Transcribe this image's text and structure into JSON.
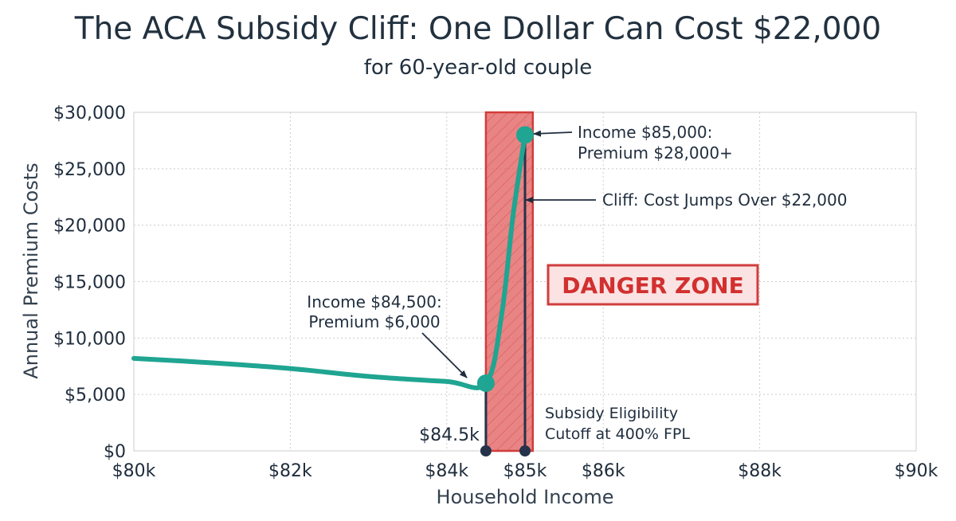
{
  "chart_data": {
    "type": "line",
    "title": "The ACA Subsidy Cliff: One Dollar Can Cost $22,000",
    "subtitle": "for 60-year-old couple",
    "xlabel": "Household Income",
    "ylabel": "Annual Premium Costs",
    "xlim": [
      80000,
      90000
    ],
    "ylim": [
      0,
      30000
    ],
    "x_ticks": [
      {
        "value": 80000,
        "label": "$80k"
      },
      {
        "value": 82000,
        "label": "$82k"
      },
      {
        "value": 84000,
        "label": "$84k"
      },
      {
        "value": 85000,
        "label": "$85k"
      },
      {
        "value": 86000,
        "label": "$86k"
      },
      {
        "value": 88000,
        "label": "$88k"
      },
      {
        "value": 90000,
        "label": "$90k"
      }
    ],
    "y_ticks": [
      {
        "value": 0,
        "label": "$0"
      },
      {
        "value": 5000,
        "label": "$5,000"
      },
      {
        "value": 10000,
        "label": "$10,000"
      },
      {
        "value": 15000,
        "label": "$15,000"
      },
      {
        "value": 20000,
        "label": "$20,000"
      },
      {
        "value": 25000,
        "label": "$25,000"
      },
      {
        "value": 30000,
        "label": "$30,000"
      }
    ],
    "grid": true,
    "series": [
      {
        "color": "#1fa591",
        "points": [
          {
            "x": 80000,
            "y": 8200
          },
          {
            "x": 81000,
            "y": 7800
          },
          {
            "x": 82000,
            "y": 7300
          },
          {
            "x": 83000,
            "y": 6600
          },
          {
            "x": 84000,
            "y": 6150
          },
          {
            "x": 84500,
            "y": 6000
          },
          {
            "x": 84700,
            "y": 12000
          },
          {
            "x": 84850,
            "y": 21000
          },
          {
            "x": 85000,
            "y": 28000
          }
        ]
      }
    ],
    "highlight_points": [
      {
        "x": 84500,
        "y": 6000
      },
      {
        "x": 85000,
        "y": 28000
      }
    ],
    "danger_zone": {
      "x_start": 84500,
      "x_end": 85100,
      "label": "DANGER ZONE",
      "color": "#e05555"
    },
    "markers": [
      {
        "x": 84500,
        "label": "$84.5k"
      },
      {
        "x": 85000,
        "label": ""
      }
    ],
    "annotations": [
      {
        "lines": [
          "Income $84,500:",
          "Premium $6,000"
        ]
      },
      {
        "lines": [
          "Income $85,000:",
          "Premium $28,000+"
        ]
      },
      {
        "lines": [
          "Cliff: Cost Jumps Over $22,000"
        ]
      },
      {
        "lines": [
          "Subsidy Eligibility",
          "Cutoff at 400% FPL"
        ]
      }
    ]
  }
}
